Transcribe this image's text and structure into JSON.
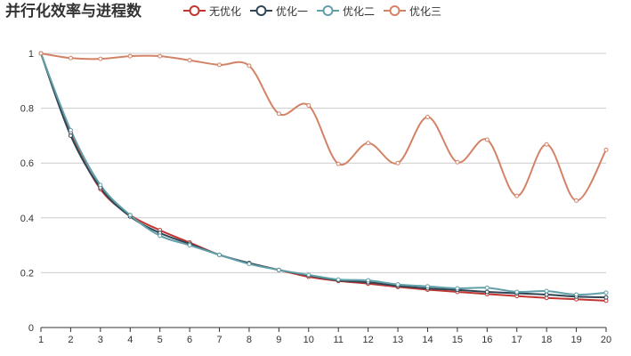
{
  "chart_data": {
    "type": "line",
    "title": "并行化效率与进程数",
    "xlabel": "",
    "ylabel": "",
    "categories": [
      "1",
      "2",
      "3",
      "4",
      "5",
      "6",
      "7",
      "8",
      "9",
      "10",
      "11",
      "12",
      "13",
      "14",
      "15",
      "16",
      "17",
      "18",
      "19",
      "20"
    ],
    "ylim": [
      0,
      1
    ],
    "yticks": [
      0,
      0.2,
      0.4,
      0.6,
      0.8,
      1
    ],
    "ytick_labels": [
      "0",
      "0.2",
      "0.4",
      "0.6",
      "0.8",
      "1"
    ],
    "grid": true,
    "legend_position": "top",
    "series": [
      {
        "name": "无优化",
        "color": "#c23531",
        "values": [
          1.0,
          0.71,
          0.505,
          0.41,
          0.355,
          0.31,
          0.265,
          0.235,
          0.21,
          0.185,
          0.17,
          0.16,
          0.148,
          0.138,
          0.13,
          0.122,
          0.115,
          0.108,
          0.103,
          0.098
        ]
      },
      {
        "name": "优化一",
        "color": "#2f4554",
        "values": [
          1.0,
          0.7,
          0.51,
          0.405,
          0.345,
          0.305,
          0.265,
          0.235,
          0.21,
          0.19,
          0.172,
          0.165,
          0.152,
          0.143,
          0.137,
          0.13,
          0.125,
          0.12,
          0.113,
          0.11
        ]
      },
      {
        "name": "优化二",
        "color": "#61a0a8",
        "values": [
          1.0,
          0.72,
          0.52,
          0.41,
          0.335,
          0.3,
          0.265,
          0.232,
          0.21,
          0.192,
          0.175,
          0.172,
          0.157,
          0.15,
          0.143,
          0.145,
          0.13,
          0.133,
          0.12,
          0.127
        ]
      },
      {
        "name": "优化三",
        "color": "#d48265",
        "values": [
          1.0,
          0.983,
          0.98,
          0.99,
          0.99,
          0.975,
          0.958,
          0.955,
          0.78,
          0.81,
          0.597,
          0.673,
          0.6,
          0.768,
          0.603,
          0.685,
          0.48,
          0.668,
          0.463,
          0.648
        ]
      }
    ]
  }
}
